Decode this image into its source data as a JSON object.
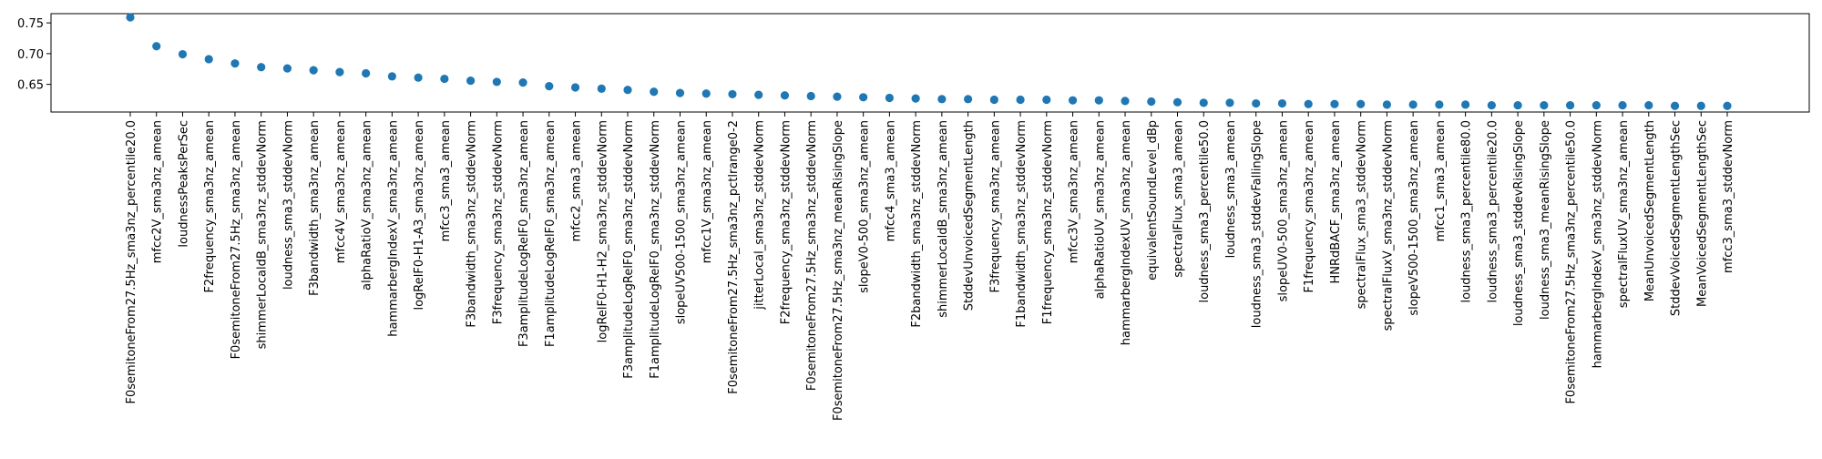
{
  "chart_data": {
    "type": "scatter",
    "title": "",
    "xlabel": "",
    "ylabel": "",
    "ylim": [
      0.605,
      0.765
    ],
    "y_ticks": [
      0.65,
      0.7,
      0.75
    ],
    "y_tick_labels": [
      "0.65",
      "0.70",
      "0.75"
    ],
    "grid": false,
    "marker_color": "#1f77b4",
    "categories": [
      "F0semitoneFrom27.5Hz_sma3nz_percentile20.0",
      "mfcc2V_sma3nz_amean",
      "loudnessPeaksPerSec",
      "F2frequency_sma3nz_amean",
      "F0semitoneFrom27.5Hz_sma3nz_amean",
      "shimmerLocaldB_sma3nz_stddevNorm",
      "loudness_sma3_stddevNorm",
      "F3bandwidth_sma3nz_amean",
      "mfcc4V_sma3nz_amean",
      "alphaRatioV_sma3nz_amean",
      "hammarbergIndexV_sma3nz_amean",
      "logRelF0-H1-A3_sma3nz_amean",
      "mfcc3_sma3_amean",
      "F3bandwidth_sma3nz_stddevNorm",
      "F3frequency_sma3nz_stddevNorm",
      "F3amplitudeLogRelF0_sma3nz_amean",
      "F1amplitudeLogRelF0_sma3nz_amean",
      "mfcc2_sma3_amean",
      "logRelF0-H1-H2_sma3nz_stddevNorm",
      "F3amplitudeLogRelF0_sma3nz_stddevNorm",
      "F1amplitudeLogRelF0_sma3nz_stddevNorm",
      "slopeUV500-1500_sma3nz_amean",
      "mfcc1V_sma3nz_amean",
      "F0semitoneFrom27.5Hz_sma3nz_pctlrange0-2",
      "jitterLocal_sma3nz_stddevNorm",
      "F2frequency_sma3nz_stddevNorm",
      "F0semitoneFrom27.5Hz_sma3nz_stddevNorm",
      "F0semitoneFrom27.5Hz_sma3nz_meanRisingSlope",
      "slopeV0-500_sma3nz_amean",
      "mfcc4_sma3_amean",
      "F2bandwidth_sma3nz_stddevNorm",
      "shimmerLocaldB_sma3nz_amean",
      "StddevUnvoicedSegmentLength",
      "F3frequency_sma3nz_amean",
      "F1bandwidth_sma3nz_stddevNorm",
      "F1frequency_sma3nz_stddevNorm",
      "mfcc3V_sma3nz_amean",
      "alphaRatioUV_sma3nz_amean",
      "hammarbergIndexUV_sma3nz_amean",
      "equivalentSoundLevel_dBp",
      "spectralFlux_sma3_amean",
      "loudness_sma3_percentile50.0",
      "loudness_sma3_amean",
      "loudness_sma3_stddevFallingSlope",
      "slopeUV0-500_sma3nz_amean",
      "F1frequency_sma3nz_amean",
      "HNRdBACF_sma3nz_amean",
      "spectralFlux_sma3_stddevNorm",
      "spectralFluxV_sma3nz_stddevNorm",
      "slopeV500-1500_sma3nz_amean",
      "mfcc1_sma3_amean",
      "loudness_sma3_percentile80.0",
      "loudness_sma3_percentile20.0",
      "loudness_sma3_stddevRisingSlope",
      "loudness_sma3_meanRisingSlope",
      "F0semitoneFrom27.5Hz_sma3nz_percentile50.0",
      "hammarbergIndexV_sma3nz_stddevNorm",
      "spectralFluxUV_sma3nz_amean",
      "MeanUnvoicedSegmentLength",
      "StddevVoicedSegmentLengthSec",
      "MeanVoicedSegmentLengthSec",
      "mfcc3_sma3_stddevNorm"
    ],
    "values": [
      0.759,
      0.712,
      0.699,
      0.691,
      0.684,
      0.678,
      0.676,
      0.673,
      0.67,
      0.668,
      0.663,
      0.661,
      0.659,
      0.656,
      0.654,
      0.653,
      0.647,
      0.645,
      0.643,
      0.641,
      0.638,
      0.636,
      0.635,
      0.634,
      0.633,
      0.632,
      0.631,
      0.63,
      0.629,
      0.628,
      0.627,
      0.626,
      0.626,
      0.625,
      0.625,
      0.625,
      0.624,
      0.624,
      0.623,
      0.622,
      0.621,
      0.62,
      0.62,
      0.619,
      0.619,
      0.618,
      0.618,
      0.618,
      0.617,
      0.617,
      0.617,
      0.617,
      0.616,
      0.616,
      0.616,
      0.616,
      0.616,
      0.616,
      0.616,
      0.615,
      0.615,
      0.615
    ]
  }
}
